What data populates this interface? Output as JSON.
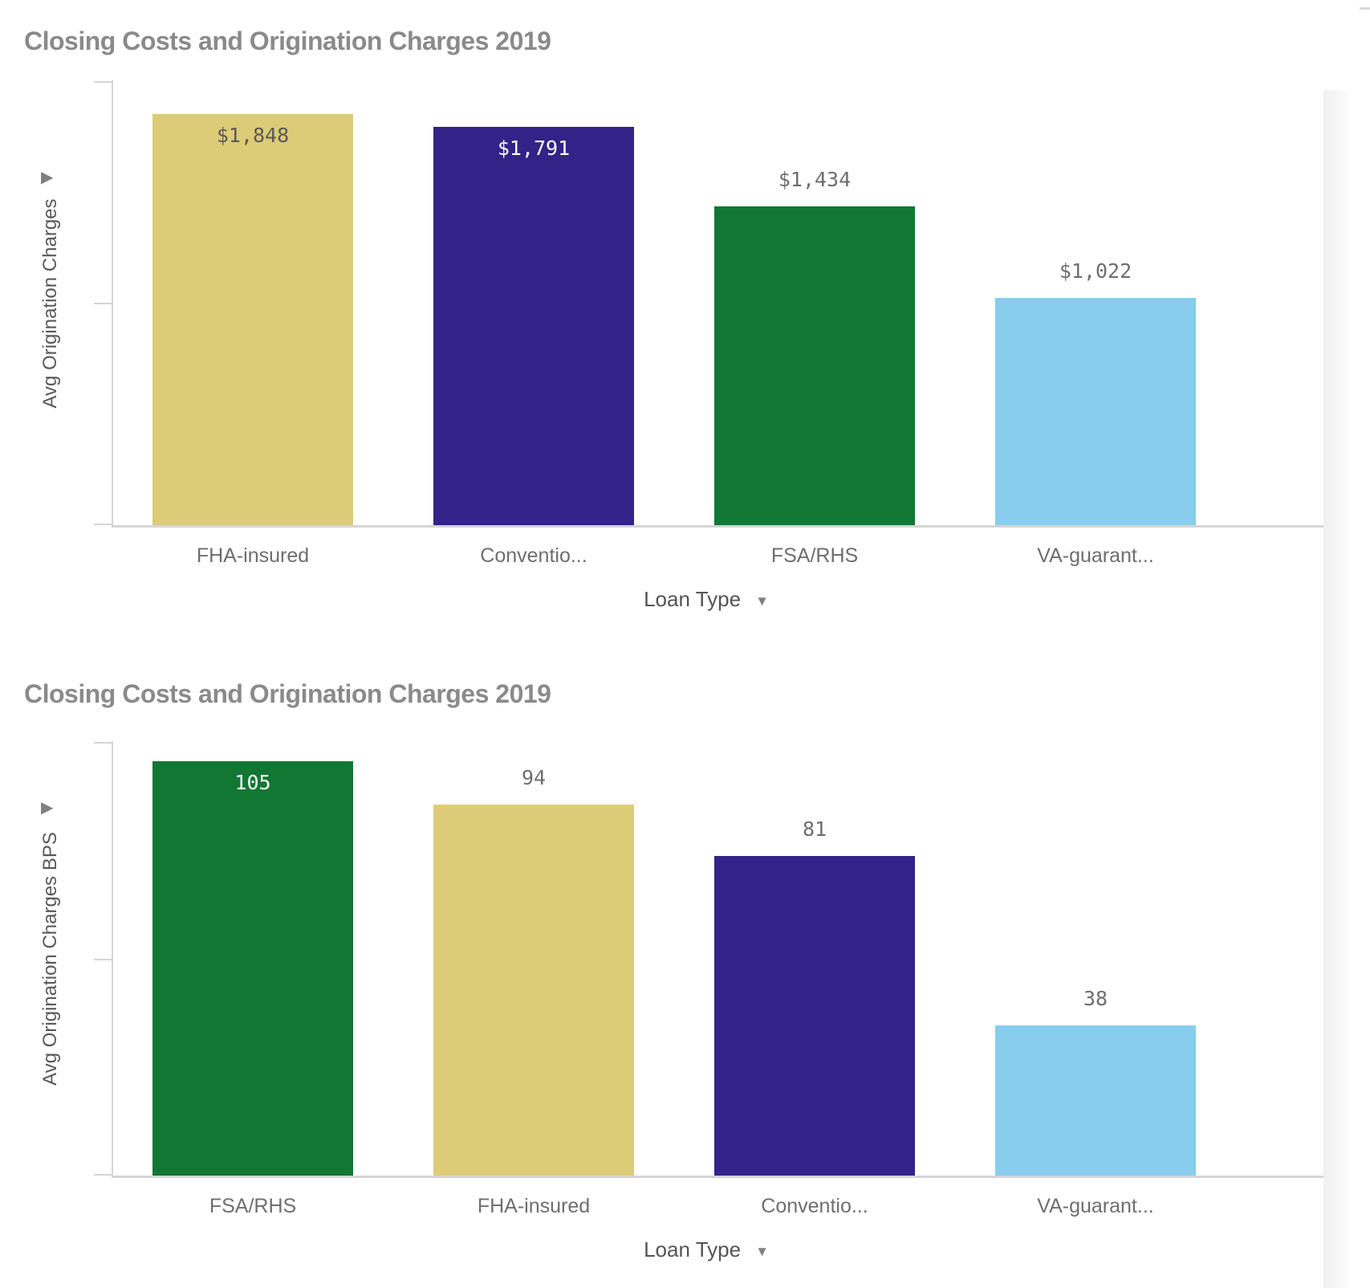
{
  "charts": [
    {
      "title": "Closing Costs and Origination Charges 2019",
      "y_axis": {
        "label": "Avg Origination Charges"
      },
      "x_axis": {
        "label": "Loan Type"
      },
      "icons": {
        "expand": "▶",
        "dropdown": "▼"
      },
      "chart_data": {
        "type": "bar",
        "categories": [
          "FHA-insured",
          "Conventio...",
          "FSA/RHS",
          "VA-guarant..."
        ],
        "values": [
          1848,
          1791,
          1434,
          1022
        ],
        "value_labels": [
          "$1,848",
          "$1,791",
          "$1,434",
          "$1,022"
        ],
        "bar_colors": [
          "#DDCC77",
          "#332288",
          "#117733",
          "#88CCEE"
        ],
        "label_placement": [
          "inside",
          "inside",
          "outside",
          "outside"
        ],
        "label_colors": [
          "#595959",
          "#ffffff",
          "#6e6e6e",
          "#6e6e6e"
        ],
        "title": "Closing Costs and Origination Charges 2019",
        "xlabel": "Loan Type",
        "ylabel": "Avg Origination Charges",
        "ylim": [
          0,
          2000
        ],
        "tick_count": 3,
        "tick_labels": [],
        "grid": false,
        "legend": "none"
      }
    },
    {
      "title": "Closing Costs and Origination Charges 2019",
      "y_axis": {
        "label": "Avg Origination Charges BPS"
      },
      "x_axis": {
        "label": "Loan Type"
      },
      "icons": {
        "expand": "▶",
        "dropdown": "▼"
      },
      "chart_data": {
        "type": "bar",
        "categories": [
          "FSA/RHS",
          "FHA-insured",
          "Conventio...",
          "VA-guarant..."
        ],
        "values": [
          105,
          94,
          81,
          38
        ],
        "value_labels": [
          "105",
          "94",
          "81",
          "38"
        ],
        "bar_colors": [
          "#117733",
          "#DDCC77",
          "#332288",
          "#88CCEE"
        ],
        "label_placement": [
          "inside",
          "outside",
          "outside",
          "outside"
        ],
        "label_colors": [
          "#ffffff",
          "#6e6e6e",
          "#6e6e6e",
          "#6e6e6e"
        ],
        "title": "Closing Costs and Origination Charges 2019",
        "xlabel": "Loan Type",
        "ylabel": "Avg Origination Charges BPS",
        "ylim": [
          0,
          110
        ],
        "tick_count": 3,
        "tick_labels": [],
        "grid": false,
        "legend": "none"
      }
    }
  ],
  "style": {
    "title_color": "#8a8a8a",
    "axis_line_color": "#d5d5d5",
    "y_axis_title_color": "#595959",
    "category_label_color": "#6e6e6e",
    "x_axis_title_color": "#545454",
    "icon_color": "#7f7f7f",
    "background": "#ffffff"
  }
}
